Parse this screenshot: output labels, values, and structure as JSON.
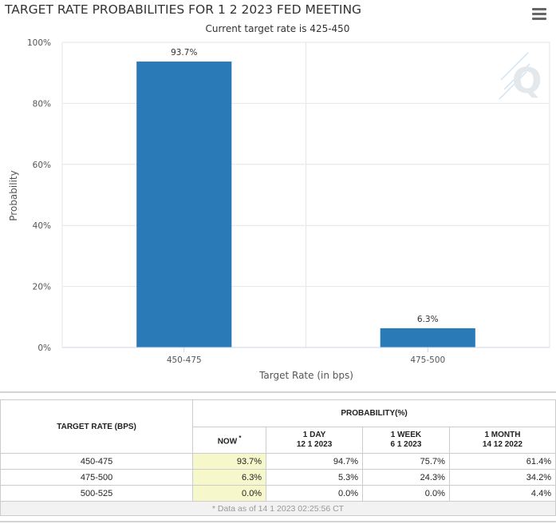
{
  "chart_data": {
    "type": "bar",
    "title": "TARGET RATE PROBABILITIES FOR 1 2 2023 FED MEETING",
    "subtitle": "Current target rate is 425-450",
    "categories": [
      "450-475",
      "475-500"
    ],
    "values": [
      93.7,
      6.3
    ],
    "data_labels": [
      "93.7%",
      "6.3%"
    ],
    "xlabel": "Target Rate (in bps)",
    "ylabel": "Probability",
    "ylim": [
      0,
      100
    ],
    "yticks": [
      0,
      20,
      40,
      60,
      80,
      100
    ],
    "ytick_labels": [
      "0%",
      "20%",
      "40%",
      "60%",
      "80%",
      "100%"
    ],
    "bar_color": "#2a7ab8",
    "grid": true,
    "watermark": "Q"
  },
  "table": {
    "target_header": "TARGET RATE (BPS)",
    "prob_header": "PROBABILITY(%)",
    "columns": [
      {
        "label": "NOW",
        "sup": "*",
        "date": ""
      },
      {
        "label": "1 DAY",
        "sup": "",
        "date": "12 1 2023"
      },
      {
        "label": "1 WEEK",
        "sup": "",
        "date": "6 1 2023"
      },
      {
        "label": "1 MONTH",
        "sup": "",
        "date": "14 12 2022"
      }
    ],
    "rows": [
      {
        "rate": "450-475",
        "now": "93.7%",
        "day": "94.7%",
        "week": "75.7%",
        "month": "61.4%"
      },
      {
        "rate": "475-500",
        "now": "6.3%",
        "day": "5.3%",
        "week": "24.3%",
        "month": "34.2%"
      },
      {
        "rate": "500-525",
        "now": "0.0%",
        "day": "0.0%",
        "week": "0.0%",
        "month": "4.4%"
      }
    ],
    "note": "* Data as of 14 1 2023 02:25:56 CT"
  },
  "colors": {
    "now_highlight": "#f7f7cc",
    "grid": "#e6e6e6",
    "axis": "#ccd6eb"
  }
}
